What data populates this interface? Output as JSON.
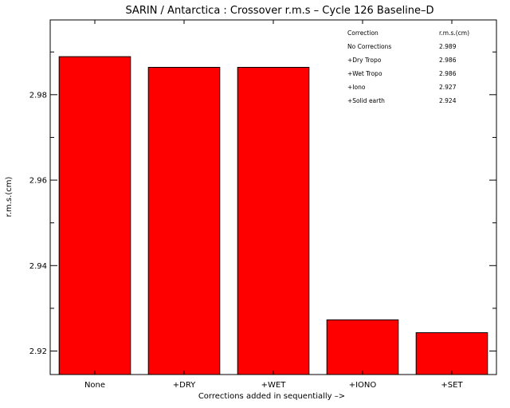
{
  "chart_data": {
    "type": "bar",
    "title": "SARIN / Antarctica : Crossover r.m.s – Cycle 126 Baseline–D",
    "xlabel": "Corrections added in sequentially –>",
    "ylabel": "r.m.s.(cm)",
    "categories": [
      "None",
      "+DRY",
      "+WET",
      "+IONO",
      "+SET"
    ],
    "values": [
      2.9889,
      2.9864,
      2.9864,
      2.9273,
      2.9243
    ],
    "ylim": [
      2.9145,
      2.9975
    ],
    "yticks": [
      "2.92",
      "2.94",
      "2.96",
      "2.98"
    ],
    "bar_color": "#ff0000",
    "grid": false,
    "legend_table": {
      "placement": "top-right",
      "header": [
        "Correction",
        "r.m.s.(cm)"
      ],
      "rows": [
        [
          "No Corrections",
          "2.989"
        ],
        [
          "+Dry Tropo",
          "2.986"
        ],
        [
          "+Wet Tropo",
          "2.986"
        ],
        [
          "+Iono",
          "2.927"
        ],
        [
          "+Solid earth",
          "2.924"
        ]
      ]
    }
  }
}
